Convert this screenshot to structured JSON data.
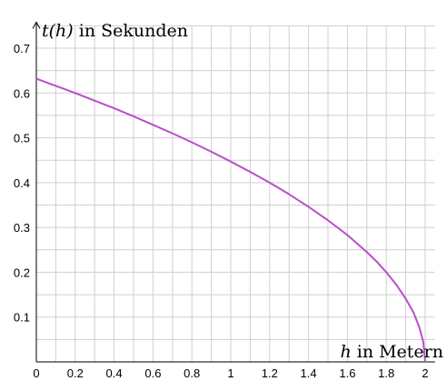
{
  "chart_data": {
    "type": "line",
    "title": "",
    "xlabel": {
      "var": "h",
      "text": " in Metern"
    },
    "ylabel": {
      "var": "t(h)",
      "text": " in Sekunden"
    },
    "xlim": [
      0,
      2.05
    ],
    "ylim": [
      0,
      0.75
    ],
    "x_ticks": [
      "0",
      "0.2",
      "0.4",
      "0.6",
      "0.8",
      "1",
      "1.2",
      "1.4",
      "1.6",
      "1.8",
      "2"
    ],
    "y_ticks": [
      "0.1",
      "0.2",
      "0.3",
      "0.4",
      "0.5",
      "0.6",
      "0.7"
    ],
    "grid": true,
    "series": [
      {
        "color": "#b94fc9",
        "x": [
          0,
          0.1,
          0.2,
          0.3,
          0.4,
          0.5,
          0.6,
          0.7,
          0.8,
          0.9,
          1.0,
          1.1,
          1.2,
          1.3,
          1.4,
          1.5,
          1.6,
          1.7,
          1.75,
          1.8,
          1.85,
          1.9,
          1.94,
          1.97,
          1.99,
          2.0
        ],
        "y": [
          0.632,
          0.616,
          0.6,
          0.583,
          0.566,
          0.548,
          0.529,
          0.51,
          0.49,
          0.469,
          0.447,
          0.424,
          0.4,
          0.374,
          0.346,
          0.316,
          0.283,
          0.245,
          0.224,
          0.2,
          0.173,
          0.141,
          0.11,
          0.077,
          0.045,
          0.0
        ]
      }
    ]
  }
}
